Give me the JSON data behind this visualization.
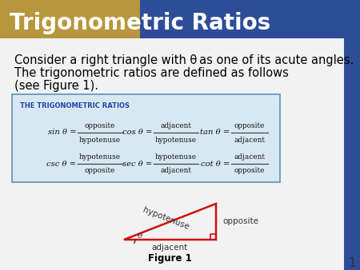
{
  "title": "Trigonometric Ratios",
  "title_bg_gold": "#B8963E",
  "title_bg_blue": "#2E4D99",
  "title_text_color": "#FFFFFF",
  "body_bg": "#FFFFFF",
  "right_bar_color": "#2E4D99",
  "intro_line1": "Consider a right triangle with θ as one of its acute angles.",
  "intro_line2": "The trigonometric ratios are defined as follows",
  "intro_line3": "(see Figure 1).",
  "box_bg": "#D8E8F3",
  "box_border": "#6699BB",
  "box_title": "THE TRIGONOMETRIC RATIOS",
  "box_title_color": "#2244AA",
  "triangle_color": "#CC1111",
  "figure_label": "Figure 1",
  "page_number": "1",
  "text_color": "#333333"
}
